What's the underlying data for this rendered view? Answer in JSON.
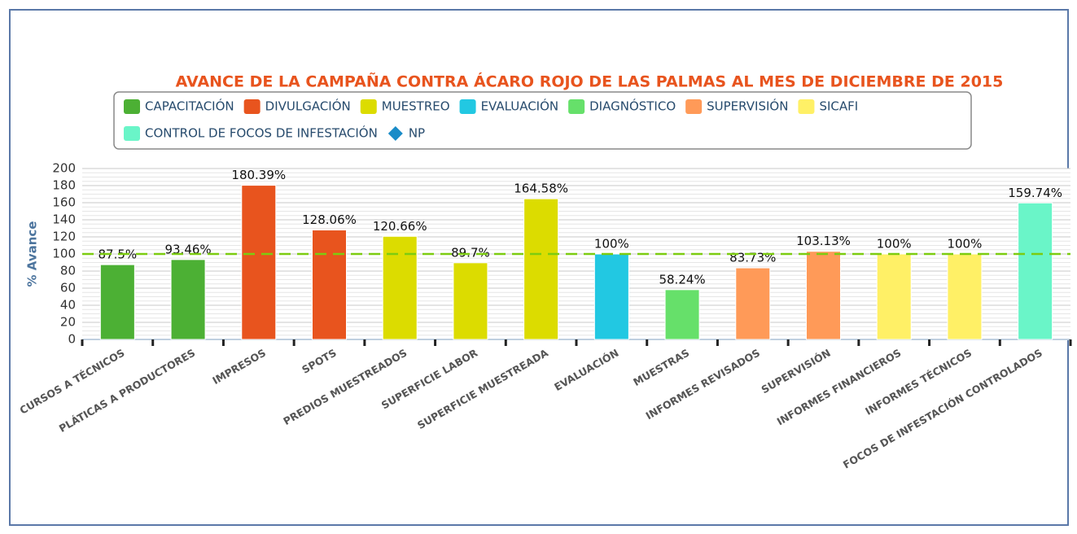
{
  "chart_data": {
    "type": "bar",
    "title": "AVANCE DE LA CAMPAÑA CONTRA ÁCARO ROJO DE LAS PALMAS AL MES DE DICIEMBRE DE 2015",
    "y_label": "% Avance",
    "categories": [
      "CURSOS A TÉCNICOS",
      "PLÁTICAS A PRODUCTORES",
      "IMPRESOS",
      "SPOTS",
      "PREDIOS MUESTREADOS",
      "SUPERFICIE LABOR",
      "SUPERFICIE MUESTREADA",
      "EVALUACIÓN",
      "MUESTRAS",
      "INFORMES REVISADOS",
      "SUPERVISIÓN",
      "INFORMES FINANCIEROS",
      "INFORMES TÉCNICOS",
      "FOCOS DE INFESTACIÓN CONTROLADOS"
    ],
    "series": [
      {
        "name": "CAPACITACIÓN",
        "color": "#4cb034",
        "values": [
          87.5,
          93.46,
          null,
          null,
          null,
          null,
          null,
          null,
          null,
          null,
          null,
          null,
          null,
          null
        ],
        "value_labels": [
          "87.5%",
          "93.46%",
          null,
          null,
          null,
          null,
          null,
          null,
          null,
          null,
          null,
          null,
          null,
          null
        ]
      },
      {
        "name": "DIVULGACIÓN",
        "color": "#e8541e",
        "values": [
          null,
          null,
          180.39,
          128.06,
          null,
          null,
          null,
          null,
          null,
          null,
          null,
          null,
          null,
          null
        ],
        "value_labels": [
          null,
          null,
          "180.39%",
          "128.06%",
          null,
          null,
          null,
          null,
          null,
          null,
          null,
          null,
          null,
          null
        ]
      },
      {
        "name": "MUESTREO",
        "color": "#dcdc00",
        "values": [
          null,
          null,
          null,
          null,
          120.66,
          89.7,
          164.58,
          null,
          null,
          null,
          null,
          null,
          null,
          null
        ],
        "value_labels": [
          null,
          null,
          null,
          null,
          "120.66%",
          "89.7%",
          "164.58%",
          null,
          null,
          null,
          null,
          null,
          null,
          null
        ]
      },
      {
        "name": "EVALUACIÓN",
        "color": "#22c8e2",
        "values": [
          null,
          null,
          null,
          null,
          null,
          null,
          null,
          100,
          null,
          null,
          null,
          null,
          null,
          null
        ],
        "value_labels": [
          null,
          null,
          null,
          null,
          null,
          null,
          null,
          "100%",
          null,
          null,
          null,
          null,
          null,
          null
        ]
      },
      {
        "name": "DIAGNÓSTICO",
        "color": "#66e06a",
        "values": [
          null,
          null,
          null,
          null,
          null,
          null,
          null,
          null,
          58.24,
          null,
          null,
          null,
          null,
          null
        ],
        "value_labels": [
          null,
          null,
          null,
          null,
          null,
          null,
          null,
          null,
          "58.24%",
          null,
          null,
          null,
          null,
          null
        ]
      },
      {
        "name": "SUPERVISIÓN",
        "color": "#ff9a58",
        "values": [
          null,
          null,
          null,
          null,
          null,
          null,
          null,
          null,
          null,
          83.73,
          103.13,
          null,
          null,
          null
        ],
        "value_labels": [
          null,
          null,
          null,
          null,
          null,
          null,
          null,
          null,
          null,
          "83.73%",
          "103.13%",
          null,
          null,
          null
        ]
      },
      {
        "name": "SICAFI",
        "color": "#fff066",
        "values": [
          null,
          null,
          null,
          null,
          null,
          null,
          null,
          null,
          null,
          null,
          null,
          100,
          100,
          null
        ],
        "value_labels": [
          null,
          null,
          null,
          null,
          null,
          null,
          null,
          null,
          null,
          null,
          null,
          "100%",
          "100%",
          null
        ]
      },
      {
        "name": "CONTROL DE FOCOS DE INFESTACIÓN",
        "color": "#6af5c8",
        "values": [
          null,
          null,
          null,
          null,
          null,
          null,
          null,
          null,
          null,
          null,
          null,
          null,
          null,
          159.74
        ],
        "value_labels": [
          null,
          null,
          null,
          null,
          null,
          null,
          null,
          null,
          null,
          null,
          null,
          null,
          null,
          "159.74%"
        ]
      },
      {
        "name": "NP",
        "color": "#1a8cc8",
        "marker": "diamond"
      }
    ],
    "target_line": 100,
    "target_color": "#7ccc10",
    "ylim": [
      0,
      200
    ],
    "yticks": [
      0,
      20,
      40,
      60,
      80,
      100,
      120,
      140,
      160,
      180,
      200
    ],
    "grid": true
  }
}
